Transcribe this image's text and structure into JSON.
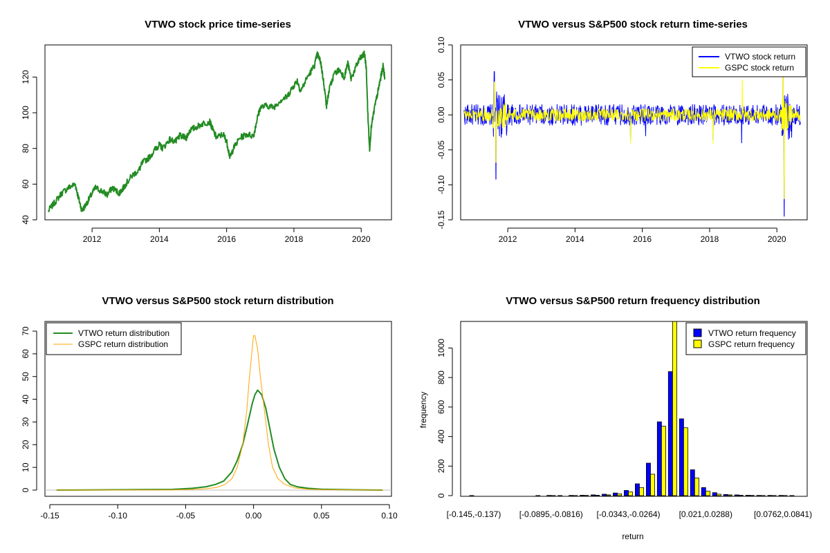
{
  "chart_data": [
    {
      "type": "line",
      "title": "VTWO stock price time-series",
      "xlabel": "",
      "ylabel": "",
      "xlim": [
        2010.6,
        2020.9
      ],
      "ylim": [
        40,
        138
      ],
      "x_ticks": [
        2012,
        2014,
        2016,
        2018,
        2020
      ],
      "y_ticks": [
        40,
        60,
        80,
        100,
        120
      ],
      "grid": false,
      "series": [
        {
          "color": "#228b22",
          "x": [
            2010.7,
            2010.9,
            2011.1,
            2011.3,
            2011.5,
            2011.6,
            2011.7,
            2011.8,
            2011.95,
            2012.1,
            2012.3,
            2012.45,
            2012.6,
            2012.8,
            2012.9,
            2013.0,
            2013.2,
            2013.4,
            2013.5,
            2013.7,
            2013.9,
            2014.0,
            2014.1,
            2014.3,
            2014.5,
            2014.6,
            2014.8,
            2014.9,
            2015.1,
            2015.3,
            2015.5,
            2015.6,
            2015.7,
            2015.9,
            2016.0,
            2016.1,
            2016.2,
            2016.4,
            2016.6,
            2016.8,
            2016.9,
            2017.0,
            2017.2,
            2017.4,
            2017.6,
            2017.8,
            2017.95,
            2018.1,
            2018.2,
            2018.4,
            2018.6,
            2018.7,
            2018.8,
            2018.9,
            2018.97,
            2019.05,
            2019.2,
            2019.35,
            2019.5,
            2019.6,
            2019.7,
            2019.85,
            2019.95,
            2020.05,
            2020.1,
            2020.15,
            2020.2,
            2020.25,
            2020.3,
            2020.4,
            2020.5,
            2020.55,
            2020.65,
            2020.7
          ],
          "values": [
            45,
            50,
            55,
            58,
            60,
            52,
            45,
            48,
            53,
            58,
            56,
            54,
            58,
            55,
            57,
            60,
            65,
            68,
            72,
            75,
            80,
            82,
            80,
            85,
            84,
            87,
            86,
            90,
            92,
            94,
            95,
            90,
            86,
            88,
            84,
            75,
            80,
            86,
            88,
            87,
            96,
            103,
            104,
            103,
            107,
            109,
            114,
            118,
            112,
            120,
            126,
            133,
            128,
            115,
            104,
            113,
            122,
            124,
            120,
            128,
            119,
            126,
            130,
            132,
            133,
            125,
            98,
            80,
            92,
            103,
            112,
            117,
            126,
            120
          ]
        }
      ]
    },
    {
      "type": "line",
      "title": "VTWO versus S&P500 stock return time-series",
      "xlabel": "",
      "ylabel": "",
      "xlim": [
        2010.6,
        2020.9
      ],
      "ylim": [
        -0.15,
        0.1
      ],
      "x_ticks": [
        2012,
        2014,
        2016,
        2018,
        2020
      ],
      "y_ticks": [
        -0.15,
        -0.1,
        -0.05,
        0.0,
        0.05,
        0.1
      ],
      "y_tick_labels": [
        "-0.15",
        "-0.10",
        "-0.05",
        "0.00",
        "0.05",
        "0.10"
      ],
      "grid": false,
      "legend_position": "top-right",
      "series": [
        {
          "name": "VTWO stock return",
          "color": "#0000ff",
          "x_range": [
            2010.7,
            2020.7
          ],
          "typical_amplitude": 0.015,
          "extremes": [
            {
              "x": 2011.6,
              "value": 0.062
            },
            {
              "x": 2011.65,
              "value": -0.092
            },
            {
              "x": 2015.65,
              "value": -0.035
            },
            {
              "x": 2016.1,
              "value": -0.03
            },
            {
              "x": 2018.1,
              "value": -0.035
            },
            {
              "x": 2018.95,
              "value": -0.04
            },
            {
              "x": 2020.18,
              "value": 0.09
            },
            {
              "x": 2020.22,
              "value": -0.145
            }
          ]
        },
        {
          "name": "GSPC stock return",
          "color": "#ffff00",
          "x_range": [
            2010.7,
            2020.7
          ],
          "typical_amplitude": 0.009,
          "extremes": [
            {
              "x": 2011.6,
              "value": 0.047
            },
            {
              "x": 2011.65,
              "value": -0.068
            },
            {
              "x": 2015.65,
              "value": -0.04
            },
            {
              "x": 2018.1,
              "value": -0.041
            },
            {
              "x": 2018.97,
              "value": 0.05
            },
            {
              "x": 2020.18,
              "value": 0.094
            },
            {
              "x": 2020.22,
              "value": -0.12
            }
          ]
        }
      ]
    },
    {
      "type": "line",
      "title": "VTWO versus S&P500 stock return distribution",
      "xlabel": "",
      "ylabel": "",
      "xlim": [
        -0.15,
        0.1
      ],
      "ylim": [
        0,
        70
      ],
      "x_ticks": [
        -0.15,
        -0.1,
        -0.05,
        0.0,
        0.05,
        0.1
      ],
      "x_tick_labels": [
        "-0.15",
        "-0.10",
        "-0.05",
        "0.00",
        "0.05",
        "0.10"
      ],
      "y_ticks": [
        0,
        10,
        20,
        30,
        40,
        50,
        60,
        70
      ],
      "grid": false,
      "legend_position": "top-left",
      "series": [
        {
          "name": "VTWO return distribution",
          "color": "#228b22",
          "x": [
            -0.145,
            -0.06,
            -0.045,
            -0.035,
            -0.028,
            -0.022,
            -0.016,
            -0.012,
            -0.008,
            -0.004,
            -0.001,
            0.001,
            0.003,
            0.006,
            0.009,
            0.012,
            0.015,
            0.019,
            0.023,
            0.027,
            0.032,
            0.04,
            0.05,
            0.065,
            0.095
          ],
          "values": [
            0,
            0.3,
            0.8,
            1.5,
            2.5,
            4,
            8,
            13,
            20,
            30,
            38,
            42,
            44,
            42,
            36,
            27,
            18,
            10,
            5,
            2.5,
            1.5,
            0.8,
            0.4,
            0.2,
            0
          ]
        },
        {
          "name": "GSPC return distribution",
          "color": "#ffa500",
          "x": [
            -0.145,
            -0.06,
            -0.045,
            -0.035,
            -0.027,
            -0.021,
            -0.016,
            -0.012,
            -0.008,
            -0.005,
            -0.003,
            -0.001,
            0.0,
            0.001,
            0.003,
            0.005,
            0.008,
            0.011,
            0.014,
            0.018,
            0.023,
            0.03,
            0.04,
            0.05,
            0.095
          ],
          "values": [
            0,
            0.1,
            0.3,
            0.6,
            1.2,
            2.5,
            5,
            10,
            20,
            35,
            50,
            62,
            68,
            68,
            62,
            50,
            35,
            20,
            10,
            5,
            2.5,
            1,
            0.4,
            0.2,
            0
          ]
        }
      ]
    },
    {
      "type": "bar",
      "title": "VTWO versus S&P500 return frequency distribution",
      "xlabel": "return",
      "ylabel": "frequency",
      "ylim": [
        0,
        1180
      ],
      "y_ticks": [
        0,
        200,
        400,
        600,
        800,
        1000
      ],
      "legend_position": "top-right",
      "categories": [
        "[-0.145,-0.137)",
        "[-0.137,-0.130)",
        "[-0.130,-0.122)",
        "[-0.122,-0.115)",
        "[-0.115,-0.108)",
        "[-0.108,-0.100)",
        "[-0.100,-0.0895)",
        "[-0.0895,-0.0816)",
        "[-0.0816,-0.0739)",
        "[-0.0739,-0.0662)",
        "[-0.0662,-0.0585)",
        "[-0.0585,-0.0508)",
        "[-0.0508,-0.0431)",
        "[-0.0431,-0.0343)",
        "[-0.0343,-0.0264)",
        "[-0.0264,-0.0187)",
        "[-0.0187,-0.011)",
        "[-0.011,-0.0033)",
        "[-0.0033,0.0044)",
        "[0.0044,0.0121)",
        "[0.0121,0.021)",
        "[0.021,0.0288)",
        "[0.0288,0.0365)",
        "[0.0365,0.0442)",
        "[0.0442,0.0519)",
        "[0.0519,0.0596)",
        "[0.0596,0.0673)",
        "[0.0673,0.0762)",
        "[0.0762,0.0841)",
        "[0.0841,0.092)"
      ],
      "shown_category_labels": [
        "[-0.145,-0.137)",
        "[-0.0895,-0.0816)",
        "[-0.0343,-0.0264)",
        "[0.021,0.0288)",
        "[0.0762,0.0841)"
      ],
      "series": [
        {
          "name": "VTWO return frequency",
          "color": "#0000ff",
          "values": [
            1,
            0,
            0,
            0,
            0,
            0,
            1,
            2,
            1,
            2,
            3,
            5,
            10,
            18,
            35,
            80,
            220,
            500,
            840,
            520,
            175,
            55,
            20,
            8,
            5,
            3,
            2,
            2,
            2,
            1
          ]
        },
        {
          "name": "GSPC return frequency",
          "color": "#ffff00",
          "values": [
            0,
            0,
            0,
            0,
            0,
            0,
            0,
            1,
            0,
            1,
            2,
            3,
            5,
            12,
            25,
            55,
            145,
            470,
            1200,
            460,
            120,
            30,
            10,
            5,
            3,
            2,
            1,
            1,
            1,
            0
          ]
        }
      ]
    }
  ]
}
